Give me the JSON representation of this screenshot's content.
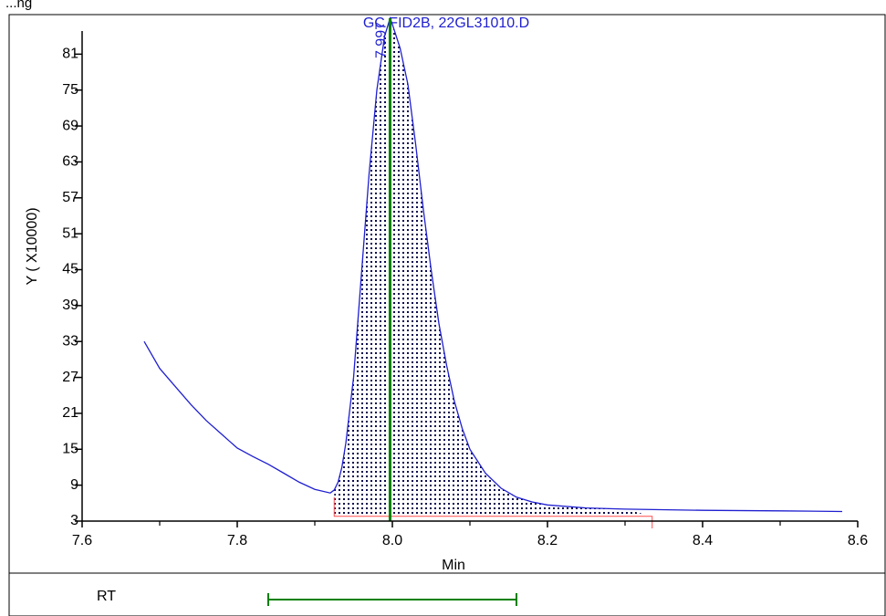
{
  "header": {
    "text": "...ng"
  },
  "chart_data": {
    "type": "line",
    "title": "GC FID2B, 22GL31010.D",
    "xlabel": "Min",
    "ylabel": "Y ( X10000)",
    "xlim": [
      7.6,
      8.6
    ],
    "ylim": [
      3,
      87
    ],
    "xticks": [
      7.6,
      7.8,
      8.0,
      8.2,
      8.4,
      8.6
    ],
    "xtick_labels": [
      "7.6",
      "7.8",
      "8.0",
      "8.2",
      "8.4",
      "8.6"
    ],
    "yticks": [
      3,
      9,
      15,
      21,
      27,
      33,
      39,
      45,
      51,
      57,
      63,
      69,
      75,
      81
    ],
    "ytick_labels": [
      "3",
      "9",
      "15",
      "21",
      "27",
      "33",
      "39",
      "45",
      "51",
      "57",
      "63",
      "69",
      "75",
      "81"
    ],
    "grid": false,
    "series": [
      {
        "x": [
          7.68,
          7.7,
          7.72,
          7.74,
          7.76,
          7.78,
          7.8,
          7.82,
          7.84,
          7.86,
          7.88,
          7.9,
          7.92,
          7.925,
          7.93,
          7.935,
          7.94,
          7.95,
          7.96,
          7.97,
          7.98,
          7.99,
          7.997,
          8.0,
          8.01,
          8.02,
          8.03,
          8.04,
          8.05,
          8.06,
          8.07,
          8.08,
          8.09,
          8.1,
          8.12,
          8.14,
          8.16,
          8.18,
          8.2,
          8.25,
          8.3,
          8.4,
          8.5,
          8.58
        ],
        "y": [
          33,
          28.5,
          25.5,
          22.5,
          19.8,
          17.5,
          15.2,
          13.8,
          12.5,
          11.0,
          9.5,
          8.3,
          7.7,
          8.2,
          9.5,
          12,
          16,
          27,
          44,
          61,
          75,
          84,
          87,
          86,
          82,
          76,
          66,
          55,
          45,
          36,
          29,
          23,
          18.5,
          15,
          11,
          8.5,
          7.0,
          6.2,
          5.7,
          5.2,
          5.0,
          4.8,
          4.7,
          4.6
        ]
      }
    ],
    "peak": {
      "rt": 7.997,
      "label": "7.997",
      "start": 7.925,
      "end": 8.335,
      "baseline_y": 3.8
    },
    "colors": {
      "trace": "#1f1fd0",
      "retention_line": "#008000",
      "baseline": "#ff4d4d",
      "fill_dots": "#0a0a50"
    }
  },
  "rt_panel": {
    "label": "RT",
    "window_start": 7.84,
    "window_end": 8.16
  }
}
